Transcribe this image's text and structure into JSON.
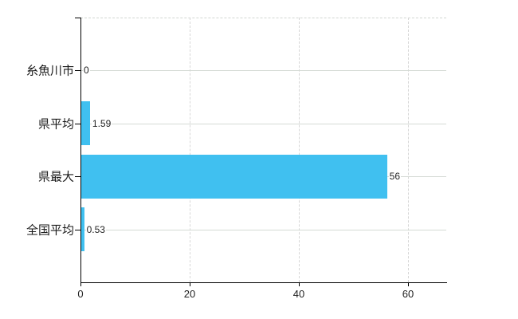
{
  "chart_data": {
    "type": "bar",
    "orientation": "horizontal",
    "title": "",
    "xlabel": "",
    "ylabel": "",
    "categories": [
      "糸魚川市",
      "県平均",
      "県最大",
      "全国平均"
    ],
    "values": [
      0,
      1.59,
      56,
      0.53
    ],
    "value_labels": [
      "0",
      "1.59",
      "56",
      "0.53"
    ],
    "x_ticks": [
      0,
      20,
      40,
      60
    ],
    "x_tick_labels": [
      "0",
      "20",
      "40",
      "60"
    ],
    "xlim": [
      0,
      67
    ],
    "grid": true,
    "legend": false,
    "bar_color": "#40c0f0",
    "axis_color": "#000000",
    "grid_color": "#d5dad5",
    "text_color": "#222222"
  }
}
